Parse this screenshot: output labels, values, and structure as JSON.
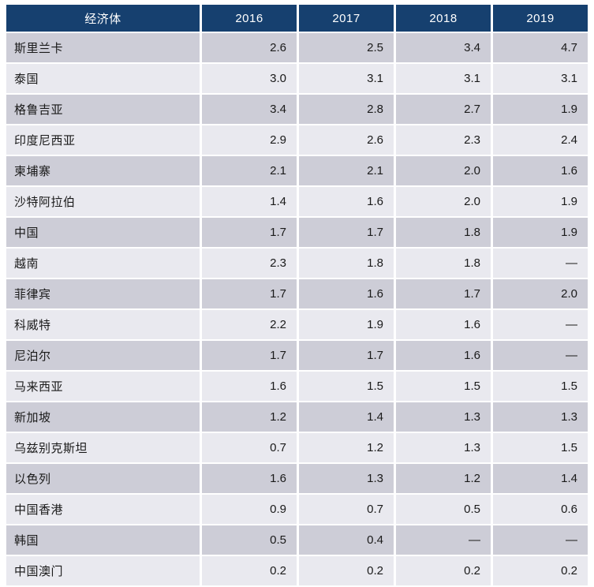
{
  "chart_data": {
    "type": "table",
    "title": "",
    "columns": [
      "经济体",
      "2016",
      "2017",
      "2018",
      "2019"
    ],
    "missing_value_symbol": "—",
    "rows": [
      {
        "economy": "斯里兰卡",
        "values": [
          "2.6",
          "2.5",
          "3.4",
          "4.7"
        ]
      },
      {
        "economy": "泰国",
        "values": [
          "3.0",
          "3.1",
          "3.1",
          "3.1"
        ]
      },
      {
        "economy": "格鲁吉亚",
        "values": [
          "3.4",
          "2.8",
          "2.7",
          "1.9"
        ]
      },
      {
        "economy": "印度尼西亚",
        "values": [
          "2.9",
          "2.6",
          "2.3",
          "2.4"
        ]
      },
      {
        "economy": "柬埔寨",
        "values": [
          "2.1",
          "2.1",
          "2.0",
          "1.6"
        ]
      },
      {
        "economy": "沙特阿拉伯",
        "values": [
          "1.4",
          "1.6",
          "2.0",
          "1.9"
        ]
      },
      {
        "economy": "中国",
        "values": [
          "1.7",
          "1.7",
          "1.8",
          "1.9"
        ]
      },
      {
        "economy": "越南",
        "values": [
          "2.3",
          "1.8",
          "1.8",
          "—"
        ]
      },
      {
        "economy": "菲律宾",
        "values": [
          "1.7",
          "1.6",
          "1.7",
          "2.0"
        ]
      },
      {
        "economy": "科威特",
        "values": [
          "2.2",
          "1.9",
          "1.6",
          "—"
        ]
      },
      {
        "economy": "尼泊尔",
        "values": [
          "1.7",
          "1.7",
          "1.6",
          "—"
        ]
      },
      {
        "economy": "马来西亚",
        "values": [
          "1.6",
          "1.5",
          "1.5",
          "1.5"
        ]
      },
      {
        "economy": "新加坡",
        "values": [
          "1.2",
          "1.4",
          "1.3",
          "1.3"
        ]
      },
      {
        "economy": "乌兹别克斯坦",
        "values": [
          "0.7",
          "1.2",
          "1.3",
          "1.5"
        ]
      },
      {
        "economy": "以色列",
        "values": [
          "1.6",
          "1.3",
          "1.2",
          "1.4"
        ]
      },
      {
        "economy": "中国香港",
        "values": [
          "0.9",
          "0.7",
          "0.5",
          "0.6"
        ]
      },
      {
        "economy": "韩国",
        "values": [
          "0.5",
          "0.4",
          "—",
          "—"
        ]
      },
      {
        "economy": "中国澳门",
        "values": [
          "0.2",
          "0.2",
          "0.2",
          "0.2"
        ]
      }
    ]
  },
  "colors": {
    "page_bg": "#ffffff",
    "header_bg": "#16406f",
    "header_text": "#ffffff",
    "row_dark": "#cdcdd7",
    "row_light": "#e9e9ef",
    "cell_text": "#1a1a1a"
  }
}
